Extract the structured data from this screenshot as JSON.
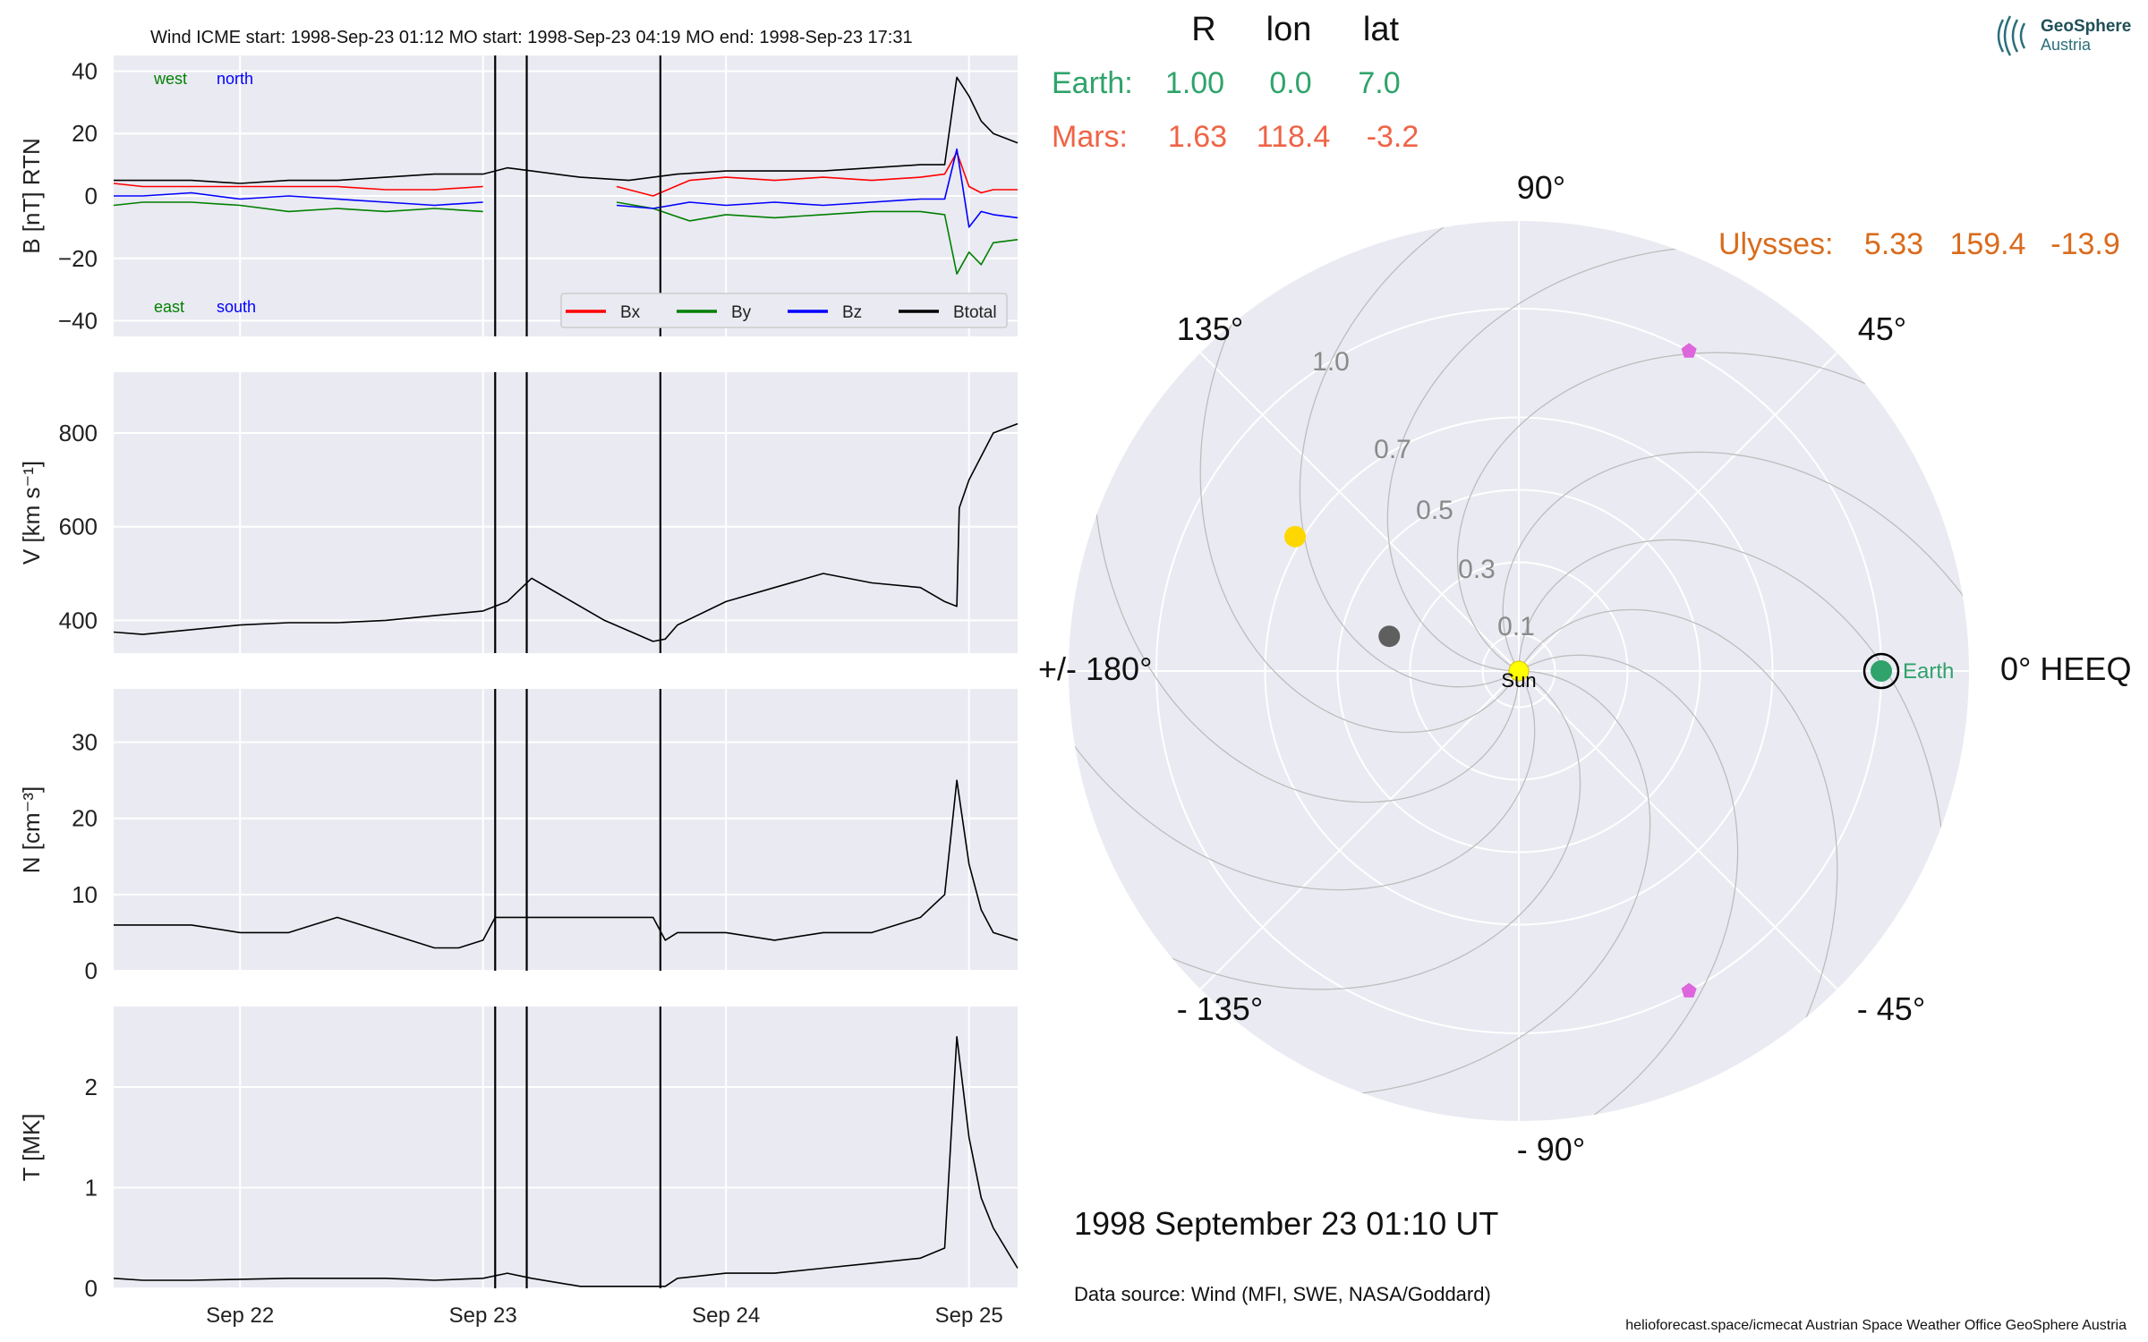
{
  "header": {
    "title": "Wind    ICME start: 1998-Sep-23 01:12   MO start: 1998-Sep-23 04:19   MO end: 1998-Sep-23 17:31"
  },
  "logo": {
    "line1": "GeoSphere",
    "line2": "Austria"
  },
  "positions": {
    "headers": [
      "R",
      "lon",
      "lat"
    ],
    "rows": [
      {
        "name": "Earth:",
        "R": "1.00",
        "lon": "0.0",
        "lat": "7.0",
        "color": "#2fa36b"
      },
      {
        "name": "Mars:",
        "R": "1.63",
        "lon": "118.4",
        "lat": "-3.2",
        "color": "#ef6446"
      }
    ],
    "ulysses": {
      "name": "Ulysses:",
      "R": "5.33",
      "lon": "159.4",
      "lat": "-13.9",
      "color": "#d96b1c"
    }
  },
  "date_label": "1998 September 23  01:10 UT",
  "source_label": "Data source: Wind (MFI, SWE, NASA/Goddard)",
  "footer": "helioforecast.space/icmecat   Austrian Space Weather Office   GeoSphere Austria",
  "colors": {
    "panel_bg": "#eaeaf2",
    "grid": "#ffffff",
    "bx": "#ff0000",
    "by": "#008000",
    "bz": "#0000ff",
    "btotal": "#000000",
    "earth": "#2fa36b",
    "sun": "#ffff00",
    "mercury": "#5f5f5f",
    "venus": "#ffd700",
    "stereo": "#dd66dd"
  },
  "chart_data": [
    {
      "type": "line",
      "panel": "magnetic field",
      "ylabel": "B [nT] RTN",
      "ylim": [
        -45,
        45
      ],
      "yticks": [
        -40,
        -20,
        0,
        20,
        40
      ],
      "xlim": [
        21.48,
        25.2
      ],
      "xticks": [
        {
          "v": 22,
          "label": "Sep 22"
        },
        {
          "v": 23,
          "label": "Sep 23"
        },
        {
          "v": 24,
          "label": "Sep 24"
        },
        {
          "v": 25,
          "label": "Sep 25"
        }
      ],
      "annotations": [
        {
          "text": "west",
          "color": "#008000"
        },
        {
          "text": "north",
          "color": "#0000ff"
        },
        {
          "text": "east",
          "color": "#008000"
        },
        {
          "text": "south",
          "color": "#0000ff"
        }
      ],
      "legend": "lower-right",
      "series": [
        {
          "name": "Bx",
          "color": "#ff0000",
          "x": [
            21.48,
            21.6,
            21.8,
            22.0,
            22.2,
            22.4,
            22.6,
            22.8,
            23.0,
            23.05,
            23.4,
            23.55,
            23.7,
            23.85,
            24.0,
            24.2,
            24.4,
            24.6,
            24.8,
            24.9,
            24.95,
            25.0,
            25.05,
            25.1,
            25.2
          ],
          "y": [
            4,
            3,
            3,
            3,
            3,
            3,
            2,
            2,
            3,
            null,
            null,
            3,
            0,
            5,
            6,
            5,
            6,
            5,
            6,
            7,
            14,
            3,
            1,
            2,
            2
          ]
        },
        {
          "name": "By",
          "color": "#008000",
          "x": [
            21.48,
            21.6,
            21.8,
            22.0,
            22.2,
            22.4,
            22.6,
            22.8,
            23.0,
            23.05,
            23.4,
            23.55,
            23.7,
            23.85,
            24.0,
            24.2,
            24.4,
            24.6,
            24.8,
            24.9,
            24.95,
            25.0,
            25.05,
            25.1,
            25.2
          ],
          "y": [
            -3,
            -2,
            -2,
            -3,
            -5,
            -4,
            -5,
            -4,
            -5,
            null,
            null,
            -2,
            -4,
            -8,
            -6,
            -7,
            -6,
            -5,
            -5,
            -6,
            -25,
            -18,
            -22,
            -15,
            -14
          ]
        },
        {
          "name": "Bz",
          "color": "#0000ff",
          "x": [
            21.48,
            21.6,
            21.8,
            22.0,
            22.2,
            22.4,
            22.6,
            22.8,
            23.0,
            23.05,
            23.4,
            23.55,
            23.7,
            23.85,
            24.0,
            24.2,
            24.4,
            24.6,
            24.8,
            24.9,
            24.95,
            25.0,
            25.05,
            25.1,
            25.2
          ],
          "y": [
            0,
            0,
            1,
            -1,
            0,
            -1,
            -2,
            -3,
            -2,
            null,
            null,
            -3,
            -4,
            -2,
            -3,
            -2,
            -3,
            -2,
            -1,
            -1,
            15,
            -10,
            -5,
            -6,
            -7
          ]
        },
        {
          "name": "Btotal",
          "color": "#000000",
          "x": [
            21.48,
            21.6,
            21.8,
            22.0,
            22.2,
            22.4,
            22.6,
            22.8,
            23.0,
            23.05,
            23.1,
            23.2,
            23.4,
            23.6,
            23.8,
            24.0,
            24.2,
            24.4,
            24.6,
            24.8,
            24.9,
            24.95,
            25.0,
            25.05,
            25.1,
            25.2
          ],
          "y": [
            5,
            5,
            5,
            4,
            5,
            5,
            6,
            7,
            7,
            8,
            9,
            8,
            6,
            5,
            7,
            8,
            8,
            8,
            9,
            10,
            10,
            38,
            32,
            24,
            20,
            17
          ]
        }
      ]
    },
    {
      "type": "line",
      "panel": "speed",
      "ylabel": "V [km s⁻¹]",
      "ylim": [
        330,
        930
      ],
      "yticks": [
        400,
        600,
        800
      ],
      "xlim": [
        21.48,
        25.2
      ],
      "series": [
        {
          "name": "V",
          "color": "#000000",
          "x": [
            21.48,
            21.6,
            21.8,
            22.0,
            22.2,
            22.4,
            22.6,
            22.8,
            23.0,
            23.1,
            23.2,
            23.3,
            23.5,
            23.7,
            23.75,
            23.8,
            24.0,
            24.2,
            24.4,
            24.6,
            24.8,
            24.9,
            24.95,
            24.96,
            25.0,
            25.1,
            25.2
          ],
          "y": [
            375,
            370,
            380,
            390,
            395,
            395,
            400,
            410,
            420,
            440,
            490,
            460,
            400,
            355,
            360,
            390,
            440,
            470,
            500,
            480,
            470,
            440,
            430,
            640,
            700,
            800,
            820
          ]
        }
      ]
    },
    {
      "type": "line",
      "panel": "density",
      "ylabel": "N [cm⁻³]",
      "ylim": [
        0,
        37
      ],
      "yticks": [
        0,
        10,
        20,
        30
      ],
      "xlim": [
        21.48,
        25.2
      ],
      "series": [
        {
          "name": "N",
          "color": "#000000",
          "x": [
            21.48,
            21.6,
            21.8,
            22.0,
            22.2,
            22.4,
            22.6,
            22.8,
            22.9,
            23.0,
            23.05,
            23.1,
            23.3,
            23.5,
            23.7,
            23.75,
            23.8,
            24.0,
            24.2,
            24.4,
            24.6,
            24.8,
            24.9,
            24.95,
            25.0,
            25.05,
            25.1,
            25.2
          ],
          "y": [
            6,
            6,
            6,
            5,
            5,
            7,
            5,
            3,
            3,
            4,
            7,
            7,
            7,
            7,
            7,
            4,
            5,
            5,
            4,
            5,
            5,
            7,
            10,
            25,
            14,
            8,
            5,
            4
          ]
        }
      ]
    },
    {
      "type": "line",
      "panel": "temperature",
      "ylabel": "T [MK]",
      "ylim": [
        0,
        2.8
      ],
      "yticks": [
        0,
        1,
        2
      ],
      "xlim": [
        21.48,
        25.2
      ],
      "series": [
        {
          "name": "T",
          "color": "#000000",
          "x": [
            21.48,
            21.6,
            21.8,
            22.0,
            22.2,
            22.4,
            22.6,
            22.8,
            23.0,
            23.1,
            23.2,
            23.4,
            23.6,
            23.75,
            23.8,
            24.0,
            24.2,
            24.4,
            24.6,
            24.8,
            24.9,
            24.95,
            25.0,
            25.05,
            25.1,
            25.2
          ],
          "y": [
            0.1,
            0.08,
            0.08,
            0.09,
            0.1,
            0.1,
            0.1,
            0.08,
            0.1,
            0.15,
            0.1,
            0.02,
            0.02,
            0.02,
            0.1,
            0.15,
            0.15,
            0.2,
            0.25,
            0.3,
            0.4,
            2.5,
            1.5,
            0.9,
            0.6,
            0.2
          ]
        }
      ]
    },
    {
      "type": "scatter",
      "panel": "heliospheric positions",
      "projection": "polar",
      "angle_labels": [
        {
          "deg": 0,
          "label": "0° HEEQ"
        },
        {
          "deg": 45,
          "label": "45°"
        },
        {
          "deg": 90,
          "label": "90°"
        },
        {
          "deg": 135,
          "label": "135°"
        },
        {
          "deg": 180,
          "label": "+/- 180°"
        },
        {
          "deg": -135,
          "label": "- 135°"
        },
        {
          "deg": -90,
          "label": "- 90°"
        },
        {
          "deg": -45,
          "label": "- 45°"
        }
      ],
      "radial_labels": [
        "0.1",
        "0.3",
        "0.5",
        "0.7",
        "1.0"
      ],
      "points": [
        {
          "label": "Sun",
          "r": 0.0,
          "lon_deg": 0,
          "color": "#ffff00"
        },
        {
          "label": "Earth",
          "r": 1.0,
          "lon_deg": 0,
          "color": "#2fa36b"
        },
        {
          "label": "",
          "r": 0.37,
          "lon_deg": 165,
          "color": "#5f5f5f"
        },
        {
          "label": "",
          "r": 0.72,
          "lon_deg": 149,
          "color": "#ffd700"
        },
        {
          "label": "",
          "r": 1.0,
          "lon_deg": 62,
          "color": "#dd66dd"
        },
        {
          "label": "",
          "r": 1.0,
          "lon_deg": -62,
          "color": "#dd66dd"
        }
      ]
    }
  ]
}
